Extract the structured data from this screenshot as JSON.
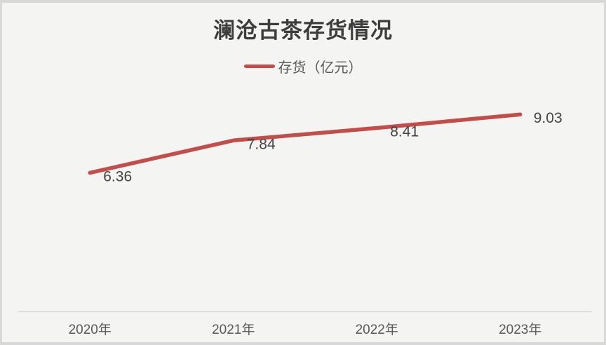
{
  "window": {
    "background_color": "#f4f4f2",
    "border_color": "#d8d8d8"
  },
  "chart_data": {
    "type": "line",
    "title": "澜沧古茶存货情况",
    "categories": [
      "2020年",
      "2021年",
      "2022年",
      "2023年"
    ],
    "series": [
      {
        "name": "存货（亿元）",
        "values": [
          6.36,
          7.84,
          8.41,
          9.03
        ],
        "data_labels": [
          "6.36",
          "7.84",
          "8.41",
          "9.03"
        ],
        "color": "#c24d4a"
      }
    ],
    "xlabel": "",
    "ylabel": "",
    "ylim": [
      0,
      10
    ],
    "grid": false,
    "y_axis_visible": false,
    "legend_position": "top",
    "axis_line_color": "#d9d9d9",
    "title_color": "#3d3d3d",
    "data_label_color": "#444444",
    "tick_label_color": "#595959"
  }
}
